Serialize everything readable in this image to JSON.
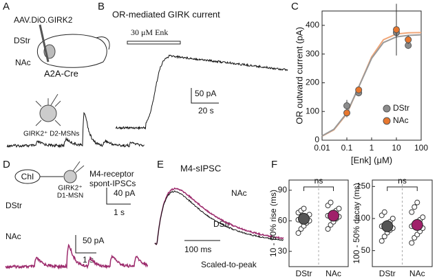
{
  "panel_a": {
    "label": "A",
    "virus": "AAV.DiO.GIRK2",
    "region_1": "DStr",
    "region_2": "NAc",
    "mouse_line": "A2A-Cre",
    "cell": "GIRK2⁺ D2-MSNs"
  },
  "panel_b": {
    "label": "B",
    "title": "OR-mediated GIRK current",
    "drug": "30 μM Enk",
    "scale_y": "50 pA",
    "scale_x": "20 s"
  },
  "panel_c_label": "C",
  "panel_d": {
    "label": "D",
    "source_cell": "ChI",
    "target_cell_1": "GIRK2⁺",
    "target_cell_2": "D1-MSN",
    "title_1": "M4-receptor",
    "title_2": "spont-IPSCs",
    "trace_1": "DStr",
    "trace_2": "NAc",
    "scale_1_y": "40 pA",
    "scale_1_x": "1 s",
    "scale_2_y": "50 pA",
    "scale_2_x": "1 s"
  },
  "panel_e": {
    "label": "E",
    "title": "M4-sIPSC",
    "trace_1": "NAc",
    "trace_2": "DStr",
    "scale_x": "100 ms",
    "note": "Scaled-to-peak"
  },
  "panel_f_label": "F",
  "chart_data": [
    {
      "type": "scatter",
      "x_label": "[Enk] (μM)",
      "y_label": "OR outward current (pA)",
      "x_log": true,
      "xlim": [
        0.01,
        100
      ],
      "xticks": [
        0.01,
        0.1,
        1,
        10,
        100
      ],
      "ylim": [
        0,
        450
      ],
      "yticks": [
        0,
        100,
        200,
        300,
        400
      ],
      "legend": "lower right",
      "series": [
        {
          "name": "DStr",
          "color": "#8c8c8c",
          "x": [
            0.1,
            0.3,
            10,
            30
          ],
          "values": [
            120,
            165,
            375,
            330
          ],
          "errors": [
            20,
            12,
            0,
            12
          ]
        },
        {
          "name": "NAc",
          "color": "#e8772e",
          "x": [
            0.1,
            0.3,
            10,
            30
          ],
          "values": [
            95,
            175,
            385,
            350
          ],
          "errors": [
            15,
            10,
            90,
            15
          ]
        }
      ],
      "fits": [
        {
          "color": "#f0a678",
          "x": [
            0.01,
            0.03,
            0.1,
            0.3,
            1,
            3,
            10,
            30,
            100
          ],
          "values": [
            14,
            36,
            92,
            185,
            290,
            350,
            370,
            374,
            375
          ]
        },
        {
          "color": "#999999",
          "x": [
            0.01,
            0.03,
            0.1,
            0.3,
            1,
            3,
            10,
            30,
            100
          ],
          "values": [
            15,
            38,
            95,
            185,
            285,
            340,
            360,
            365,
            367
          ]
        }
      ]
    },
    {
      "type": "dot",
      "y_label": "10 - 90% rise (ms)",
      "categories": [
        "DStr",
        "NAc"
      ],
      "significance": "ns",
      "ylim": [
        15,
        100
      ],
      "yticks": [
        30,
        60,
        90
      ],
      "colors": [
        "#555555",
        "#a0206a"
      ],
      "means": [
        62,
        65
      ],
      "points": [
        [
          48,
          52,
          55,
          58,
          60,
          61,
          62,
          63,
          64,
          66,
          68,
          70,
          72
        ],
        [
          52,
          56,
          59,
          62,
          64,
          65,
          66,
          68,
          70,
          72,
          75,
          78
        ]
      ]
    },
    {
      "type": "dot",
      "y_label": "100 - 50% decay (ms)",
      "categories": [
        "DStr",
        "NAc"
      ],
      "significance": "ns",
      "ylim": [
        25,
        160
      ],
      "yticks": [
        50,
        100,
        150
      ],
      "colors": [
        "#555555",
        "#a0206a"
      ],
      "means": [
        88,
        90
      ],
      "points": [
        [
          65,
          72,
          78,
          82,
          85,
          88,
          90,
          93,
          95,
          100,
          105,
          110
        ],
        [
          62,
          70,
          75,
          80,
          85,
          88,
          92,
          95,
          98,
          102,
          110,
          118,
          125
        ]
      ]
    }
  ]
}
